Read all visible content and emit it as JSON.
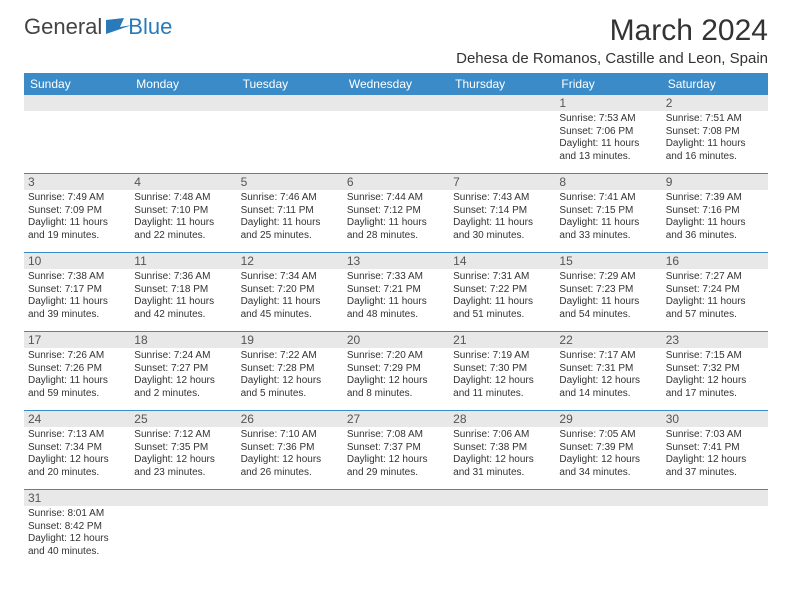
{
  "logo": {
    "text_a": "General",
    "text_b": "Blue",
    "color_a": "#555555",
    "color_b": "#2a7ab9"
  },
  "title": "March 2024",
  "location": "Dehesa de Romanos, Castille and Leon, Spain",
  "colors": {
    "header_bg": "#3b8bc8",
    "header_fg": "#ffffff",
    "day_num_bg": "#e8e8e8",
    "border": "#3b8bc8",
    "text": "#333333"
  },
  "days_of_week": [
    "Sunday",
    "Monday",
    "Tuesday",
    "Wednesday",
    "Thursday",
    "Friday",
    "Saturday"
  ],
  "weeks": [
    [
      {
        "n": "",
        "l": [
          "",
          "",
          "",
          ""
        ]
      },
      {
        "n": "",
        "l": [
          "",
          "",
          "",
          ""
        ]
      },
      {
        "n": "",
        "l": [
          "",
          "",
          "",
          ""
        ]
      },
      {
        "n": "",
        "l": [
          "",
          "",
          "",
          ""
        ]
      },
      {
        "n": "",
        "l": [
          "",
          "",
          "",
          ""
        ]
      },
      {
        "n": "1",
        "l": [
          "Sunrise: 7:53 AM",
          "Sunset: 7:06 PM",
          "Daylight: 11 hours",
          "and 13 minutes."
        ]
      },
      {
        "n": "2",
        "l": [
          "Sunrise: 7:51 AM",
          "Sunset: 7:08 PM",
          "Daylight: 11 hours",
          "and 16 minutes."
        ]
      }
    ],
    [
      {
        "n": "3",
        "l": [
          "Sunrise: 7:49 AM",
          "Sunset: 7:09 PM",
          "Daylight: 11 hours",
          "and 19 minutes."
        ]
      },
      {
        "n": "4",
        "l": [
          "Sunrise: 7:48 AM",
          "Sunset: 7:10 PM",
          "Daylight: 11 hours",
          "and 22 minutes."
        ]
      },
      {
        "n": "5",
        "l": [
          "Sunrise: 7:46 AM",
          "Sunset: 7:11 PM",
          "Daylight: 11 hours",
          "and 25 minutes."
        ]
      },
      {
        "n": "6",
        "l": [
          "Sunrise: 7:44 AM",
          "Sunset: 7:12 PM",
          "Daylight: 11 hours",
          "and 28 minutes."
        ]
      },
      {
        "n": "7",
        "l": [
          "Sunrise: 7:43 AM",
          "Sunset: 7:14 PM",
          "Daylight: 11 hours",
          "and 30 minutes."
        ]
      },
      {
        "n": "8",
        "l": [
          "Sunrise: 7:41 AM",
          "Sunset: 7:15 PM",
          "Daylight: 11 hours",
          "and 33 minutes."
        ]
      },
      {
        "n": "9",
        "l": [
          "Sunrise: 7:39 AM",
          "Sunset: 7:16 PM",
          "Daylight: 11 hours",
          "and 36 minutes."
        ]
      }
    ],
    [
      {
        "n": "10",
        "l": [
          "Sunrise: 7:38 AM",
          "Sunset: 7:17 PM",
          "Daylight: 11 hours",
          "and 39 minutes."
        ]
      },
      {
        "n": "11",
        "l": [
          "Sunrise: 7:36 AM",
          "Sunset: 7:18 PM",
          "Daylight: 11 hours",
          "and 42 minutes."
        ]
      },
      {
        "n": "12",
        "l": [
          "Sunrise: 7:34 AM",
          "Sunset: 7:20 PM",
          "Daylight: 11 hours",
          "and 45 minutes."
        ]
      },
      {
        "n": "13",
        "l": [
          "Sunrise: 7:33 AM",
          "Sunset: 7:21 PM",
          "Daylight: 11 hours",
          "and 48 minutes."
        ]
      },
      {
        "n": "14",
        "l": [
          "Sunrise: 7:31 AM",
          "Sunset: 7:22 PM",
          "Daylight: 11 hours",
          "and 51 minutes."
        ]
      },
      {
        "n": "15",
        "l": [
          "Sunrise: 7:29 AM",
          "Sunset: 7:23 PM",
          "Daylight: 11 hours",
          "and 54 minutes."
        ]
      },
      {
        "n": "16",
        "l": [
          "Sunrise: 7:27 AM",
          "Sunset: 7:24 PM",
          "Daylight: 11 hours",
          "and 57 minutes."
        ]
      }
    ],
    [
      {
        "n": "17",
        "l": [
          "Sunrise: 7:26 AM",
          "Sunset: 7:26 PM",
          "Daylight: 11 hours",
          "and 59 minutes."
        ]
      },
      {
        "n": "18",
        "l": [
          "Sunrise: 7:24 AM",
          "Sunset: 7:27 PM",
          "Daylight: 12 hours",
          "and 2 minutes."
        ]
      },
      {
        "n": "19",
        "l": [
          "Sunrise: 7:22 AM",
          "Sunset: 7:28 PM",
          "Daylight: 12 hours",
          "and 5 minutes."
        ]
      },
      {
        "n": "20",
        "l": [
          "Sunrise: 7:20 AM",
          "Sunset: 7:29 PM",
          "Daylight: 12 hours",
          "and 8 minutes."
        ]
      },
      {
        "n": "21",
        "l": [
          "Sunrise: 7:19 AM",
          "Sunset: 7:30 PM",
          "Daylight: 12 hours",
          "and 11 minutes."
        ]
      },
      {
        "n": "22",
        "l": [
          "Sunrise: 7:17 AM",
          "Sunset: 7:31 PM",
          "Daylight: 12 hours",
          "and 14 minutes."
        ]
      },
      {
        "n": "23",
        "l": [
          "Sunrise: 7:15 AM",
          "Sunset: 7:32 PM",
          "Daylight: 12 hours",
          "and 17 minutes."
        ]
      }
    ],
    [
      {
        "n": "24",
        "l": [
          "Sunrise: 7:13 AM",
          "Sunset: 7:34 PM",
          "Daylight: 12 hours",
          "and 20 minutes."
        ]
      },
      {
        "n": "25",
        "l": [
          "Sunrise: 7:12 AM",
          "Sunset: 7:35 PM",
          "Daylight: 12 hours",
          "and 23 minutes."
        ]
      },
      {
        "n": "26",
        "l": [
          "Sunrise: 7:10 AM",
          "Sunset: 7:36 PM",
          "Daylight: 12 hours",
          "and 26 minutes."
        ]
      },
      {
        "n": "27",
        "l": [
          "Sunrise: 7:08 AM",
          "Sunset: 7:37 PM",
          "Daylight: 12 hours",
          "and 29 minutes."
        ]
      },
      {
        "n": "28",
        "l": [
          "Sunrise: 7:06 AM",
          "Sunset: 7:38 PM",
          "Daylight: 12 hours",
          "and 31 minutes."
        ]
      },
      {
        "n": "29",
        "l": [
          "Sunrise: 7:05 AM",
          "Sunset: 7:39 PM",
          "Daylight: 12 hours",
          "and 34 minutes."
        ]
      },
      {
        "n": "30",
        "l": [
          "Sunrise: 7:03 AM",
          "Sunset: 7:41 PM",
          "Daylight: 12 hours",
          "and 37 minutes."
        ]
      }
    ],
    [
      {
        "n": "31",
        "l": [
          "Sunrise: 8:01 AM",
          "Sunset: 8:42 PM",
          "Daylight: 12 hours",
          "and 40 minutes."
        ]
      },
      {
        "n": "",
        "l": [
          "",
          "",
          "",
          ""
        ]
      },
      {
        "n": "",
        "l": [
          "",
          "",
          "",
          ""
        ]
      },
      {
        "n": "",
        "l": [
          "",
          "",
          "",
          ""
        ]
      },
      {
        "n": "",
        "l": [
          "",
          "",
          "",
          ""
        ]
      },
      {
        "n": "",
        "l": [
          "",
          "",
          "",
          ""
        ]
      },
      {
        "n": "",
        "l": [
          "",
          "",
          "",
          ""
        ]
      }
    ]
  ]
}
